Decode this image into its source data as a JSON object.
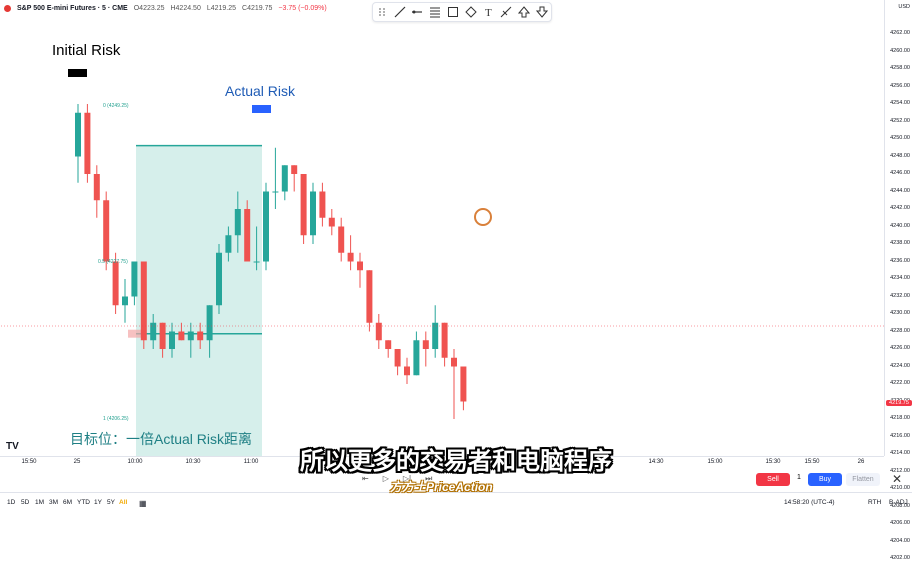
{
  "header": {
    "symbol": "S&P 500 E-mini Futures · 5 · CME",
    "open": "O4223.25",
    "high": "H4224.50",
    "low": "L4219.25",
    "close": "C4219.75",
    "change": "−3.75 (−0.09%)"
  },
  "price_axis": {
    "currency": "USD",
    "ticks": [
      "4262.00",
      "4260.00",
      "4258.00",
      "4256.00",
      "4254.00",
      "4252.00",
      "4250.00",
      "4248.00",
      "4246.00",
      "4244.00",
      "4242.00",
      "4240.00",
      "4238.00",
      "4236.00",
      "4234.00",
      "4232.00",
      "4230.00",
      "4228.00",
      "4226.00",
      "4224.00",
      "4222.00",
      "4220.00",
      "4218.00",
      "4216.00",
      "4214.00",
      "4212.00",
      "4210.00",
      "4208.00",
      "4206.00",
      "4204.00",
      "4202.00"
    ],
    "current_price": "4219.75"
  },
  "time_axis": {
    "labels": [
      "15:50",
      "25",
      "10:00",
      "10:30",
      "11:00",
      "14:30",
      "15:00",
      "15:30",
      "15:50",
      "26"
    ]
  },
  "annotations": {
    "initial_risk": "Initial Risk",
    "actual_risk": "Actual Risk",
    "target_label": "目标位：一倍Actual Risk距离",
    "fib_0": "0 (4249.25)",
    "fib_05": "0.5 (4227.75)",
    "fib_1": "1 (4206.25)"
  },
  "subtitle": "所以更多的交易者和电脑程序",
  "watermark": "方方土PriceAction",
  "trade_bar": {
    "sell_label": "Sell",
    "quantity": "1",
    "buy_label": "Buy",
    "flatten_label": "Flatten"
  },
  "bottom_bar": {
    "timeframes": [
      "1D",
      "5D",
      "1M",
      "3M",
      "6M",
      "YTD",
      "1Y",
      "5Y",
      "All"
    ],
    "active_timeframe": "All",
    "clock": "14:58:20 (UTC-4)",
    "session": "RTH",
    "adjust": "B-ADJ"
  },
  "colors": {
    "up": "#26a69a",
    "down": "#ef5350",
    "accent": "#2962ff",
    "fib_fill": "#cfece7"
  },
  "chart_data": {
    "type": "candlestick",
    "ylim": [
      4201,
      4263
    ],
    "candles": [
      {
        "o": 4248,
        "h": 4254,
        "l": 4245,
        "c": 4253
      },
      {
        "o": 4253,
        "h": 4254,
        "l": 4245,
        "c": 4246
      },
      {
        "o": 4246,
        "h": 4247,
        "l": 4241,
        "c": 4243
      },
      {
        "o": 4243,
        "h": 4244,
        "l": 4235,
        "c": 4236
      },
      {
        "o": 4236,
        "h": 4237,
        "l": 4230,
        "c": 4231
      },
      {
        "o": 4231,
        "h": 4234,
        "l": 4229,
        "c": 4232
      },
      {
        "o": 4232,
        "h": 4236,
        "l": 4231,
        "c": 4236
      },
      {
        "o": 4236,
        "h": 4236,
        "l": 4226,
        "c": 4227
      },
      {
        "o": 4227,
        "h": 4230,
        "l": 4226,
        "c": 4229
      },
      {
        "o": 4229,
        "h": 4229,
        "l": 4225,
        "c": 4226
      },
      {
        "o": 4226,
        "h": 4229,
        "l": 4225,
        "c": 4228
      },
      {
        "o": 4228,
        "h": 4229,
        "l": 4227,
        "c": 4227
      },
      {
        "o": 4227,
        "h": 4229,
        "l": 4225,
        "c": 4228
      },
      {
        "o": 4228,
        "h": 4229,
        "l": 4226,
        "c": 4227
      },
      {
        "o": 4227,
        "h": 4231,
        "l": 4225,
        "c": 4231
      },
      {
        "o": 4231,
        "h": 4238,
        "l": 4230,
        "c": 4237
      },
      {
        "o": 4237,
        "h": 4240,
        "l": 4236,
        "c": 4239
      },
      {
        "o": 4239,
        "h": 4244,
        "l": 4237,
        "c": 4242
      },
      {
        "o": 4242,
        "h": 4243,
        "l": 4236,
        "c": 4236
      },
      {
        "o": 4236,
        "h": 4240,
        "l": 4235,
        "c": 4236
      },
      {
        "o": 4236,
        "h": 4245,
        "l": 4235,
        "c": 4244
      },
      {
        "o": 4244,
        "h": 4249,
        "l": 4242,
        "c": 4244
      },
      {
        "o": 4244,
        "h": 4247,
        "l": 4243,
        "c": 4247
      },
      {
        "o": 4247,
        "h": 4247,
        "l": 4244,
        "c": 4246
      },
      {
        "o": 4246,
        "h": 4246,
        "l": 4238,
        "c": 4239
      },
      {
        "o": 4239,
        "h": 4245,
        "l": 4238,
        "c": 4244
      },
      {
        "o": 4244,
        "h": 4245,
        "l": 4240,
        "c": 4241
      },
      {
        "o": 4241,
        "h": 4242,
        "l": 4239,
        "c": 4240
      },
      {
        "o": 4240,
        "h": 4241,
        "l": 4236,
        "c": 4237
      },
      {
        "o": 4237,
        "h": 4239,
        "l": 4235,
        "c": 4236
      },
      {
        "o": 4236,
        "h": 4237,
        "l": 4233,
        "c": 4235
      },
      {
        "o": 4235,
        "h": 4235,
        "l": 4228,
        "c": 4229
      },
      {
        "o": 4229,
        "h": 4230,
        "l": 4226,
        "c": 4227
      },
      {
        "o": 4227,
        "h": 4227,
        "l": 4225,
        "c": 4226
      },
      {
        "o": 4226,
        "h": 4226,
        "l": 4223,
        "c": 4224
      },
      {
        "o": 4224,
        "h": 4225,
        "l": 4222,
        "c": 4223
      },
      {
        "o": 4223,
        "h": 4228,
        "l": 4223,
        "c": 4227
      },
      {
        "o": 4227,
        "h": 4228,
        "l": 4224,
        "c": 4226
      },
      {
        "o": 4226,
        "h": 4231,
        "l": 4225,
        "c": 4229
      },
      {
        "o": 4229,
        "h": 4229,
        "l": 4224,
        "c": 4225
      },
      {
        "o": 4225,
        "h": 4226,
        "l": 4218,
        "c": 4224
      },
      {
        "o": 4224,
        "h": 4224,
        "l": 4219,
        "c": 4220
      }
    ]
  }
}
